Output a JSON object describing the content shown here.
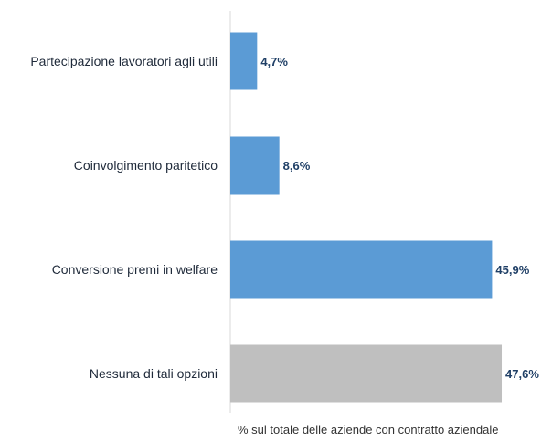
{
  "chart_data": {
    "type": "bar",
    "orientation": "horizontal",
    "categories": [
      "Partecipazione lavoratori agli utili",
      "Coinvolgimento paritetico",
      "Conversione premi in welfare",
      "Nessuna di tali opzioni"
    ],
    "values": [
      4.7,
      8.6,
      45.9,
      47.6
    ],
    "value_labels": [
      "4,7%",
      "8,6%",
      "45,9%",
      "47,6%"
    ],
    "bar_colors": [
      "#5b9bd5",
      "#5b9bd5",
      "#5b9bd5",
      "#bfbfbf"
    ],
    "xlabel": "% sul totale delle aziende con contratto aziendale",
    "xlim": [
      0,
      50
    ],
    "grid": false,
    "legend": "none"
  }
}
